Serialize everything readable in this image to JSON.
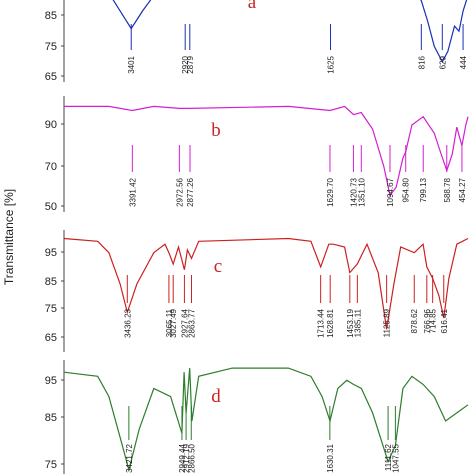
{
  "chart_data": {
    "type": "line",
    "ylabel": "Transmittance [%]",
    "x_direction": "wavenumber decreasing left to right",
    "panels": [
      {
        "label": "a",
        "label_color": "#cc2222",
        "color": "#1a2fb5",
        "yticks": [
          85,
          75,
          65
        ],
        "ylim": [
          58,
          95
        ],
        "series": [
          {
            "x": 4000,
            "y": 96
          },
          {
            "x": 3700,
            "y": 96
          },
          {
            "x": 3600,
            "y": 93
          },
          {
            "x": 3500,
            "y": 86
          },
          {
            "x": 3401,
            "y": 79
          },
          {
            "x": 3300,
            "y": 86
          },
          {
            "x": 3200,
            "y": 92
          },
          {
            "x": 3100,
            "y": 95
          },
          {
            "x": 3000,
            "y": 96
          },
          {
            "x": 2000,
            "y": 96
          },
          {
            "x": 1000,
            "y": 96
          },
          {
            "x": 900,
            "y": 95
          },
          {
            "x": 816,
            "y": 90
          },
          {
            "x": 760,
            "y": 82
          },
          {
            "x": 700,
            "y": 72
          },
          {
            "x": 629,
            "y": 66
          },
          {
            "x": 580,
            "y": 70
          },
          {
            "x": 520,
            "y": 80
          },
          {
            "x": 480,
            "y": 78
          },
          {
            "x": 444,
            "y": 86
          },
          {
            "x": 400,
            "y": 92
          }
        ],
        "peaks": [
          {
            "x": 3401,
            "label": "3401"
          },
          {
            "x": 2920,
            "label": "2920"
          },
          {
            "x": 2879,
            "label": "2879"
          },
          {
            "x": 1625,
            "label": "1625"
          },
          {
            "x": 816,
            "label": "816"
          },
          {
            "x": 629,
            "label": "629"
          },
          {
            "x": 444,
            "label": "444"
          }
        ]
      },
      {
        "label": "b",
        "label_color": "#cc2222",
        "color": "#d21fd2",
        "yticks": [
          90,
          70,
          50
        ],
        "ylim": [
          44,
          100
        ],
        "series": [
          {
            "x": 4000,
            "y": 95
          },
          {
            "x": 3600,
            "y": 95
          },
          {
            "x": 3391,
            "y": 93
          },
          {
            "x": 3200,
            "y": 95
          },
          {
            "x": 2972,
            "y": 94
          },
          {
            "x": 2877,
            "y": 94
          },
          {
            "x": 2000,
            "y": 95
          },
          {
            "x": 1630,
            "y": 93
          },
          {
            "x": 1500,
            "y": 95
          },
          {
            "x": 1420,
            "y": 91
          },
          {
            "x": 1351,
            "y": 92
          },
          {
            "x": 1250,
            "y": 84
          },
          {
            "x": 1150,
            "y": 66
          },
          {
            "x": 1095,
            "y": 52
          },
          {
            "x": 1040,
            "y": 56
          },
          {
            "x": 980,
            "y": 70
          },
          {
            "x": 955,
            "y": 73
          },
          {
            "x": 900,
            "y": 86
          },
          {
            "x": 799,
            "y": 90
          },
          {
            "x": 700,
            "y": 82
          },
          {
            "x": 640,
            "y": 72
          },
          {
            "x": 589,
            "y": 64
          },
          {
            "x": 540,
            "y": 72
          },
          {
            "x": 500,
            "y": 85
          },
          {
            "x": 454,
            "y": 76
          },
          {
            "x": 420,
            "y": 86
          },
          {
            "x": 400,
            "y": 90
          }
        ],
        "peaks": [
          {
            "x": 3391,
            "label": "3391.42"
          },
          {
            "x": 2972,
            "label": "2972.56"
          },
          {
            "x": 2877,
            "label": "2877.26"
          },
          {
            "x": 1630,
            "label": "1629.70"
          },
          {
            "x": 1421,
            "label": "1420.73"
          },
          {
            "x": 1351,
            "label": "1351.10"
          },
          {
            "x": 1095,
            "label": "1094.67"
          },
          {
            "x": 955,
            "label": "954.80"
          },
          {
            "x": 799,
            "label": "799.13"
          },
          {
            "x": 589,
            "label": "588.78"
          },
          {
            "x": 454,
            "label": "454.27"
          }
        ]
      },
      {
        "label": "c",
        "label_color": "#cc2222",
        "color": "#cc2020",
        "yticks": [
          95,
          85,
          75,
          65
        ],
        "ylim": [
          58,
          101
        ],
        "series": [
          {
            "x": 4000,
            "y": 98
          },
          {
            "x": 3700,
            "y": 97
          },
          {
            "x": 3600,
            "y": 93
          },
          {
            "x": 3500,
            "y": 82
          },
          {
            "x": 3436,
            "y": 72
          },
          {
            "x": 3350,
            "y": 82
          },
          {
            "x": 3200,
            "y": 93
          },
          {
            "x": 3100,
            "y": 96
          },
          {
            "x": 3065,
            "y": 93
          },
          {
            "x": 3027,
            "y": 89
          },
          {
            "x": 2980,
            "y": 95
          },
          {
            "x": 2927,
            "y": 87
          },
          {
            "x": 2900,
            "y": 94
          },
          {
            "x": 2864,
            "y": 91
          },
          {
            "x": 2800,
            "y": 97
          },
          {
            "x": 2000,
            "y": 98
          },
          {
            "x": 1800,
            "y": 97
          },
          {
            "x": 1713,
            "y": 88
          },
          {
            "x": 1640,
            "y": 96
          },
          {
            "x": 1600,
            "y": 96
          },
          {
            "x": 1500,
            "y": 95
          },
          {
            "x": 1453,
            "y": 86
          },
          {
            "x": 1386,
            "y": 89
          },
          {
            "x": 1300,
            "y": 96
          },
          {
            "x": 1200,
            "y": 86
          },
          {
            "x": 1125,
            "y": 66
          },
          {
            "x": 1060,
            "y": 82
          },
          {
            "x": 1000,
            "y": 95
          },
          {
            "x": 879,
            "y": 93
          },
          {
            "x": 800,
            "y": 96
          },
          {
            "x": 767,
            "y": 88
          },
          {
            "x": 715,
            "y": 84
          },
          {
            "x": 660,
            "y": 78
          },
          {
            "x": 616,
            "y": 70
          },
          {
            "x": 570,
            "y": 84
          },
          {
            "x": 500,
            "y": 96
          },
          {
            "x": 400,
            "y": 98
          }
        ],
        "peaks": [
          {
            "x": 3436,
            "label": "3436.23"
          },
          {
            "x": 3065,
            "label": "3065.11"
          },
          {
            "x": 3027,
            "label": "3027.49"
          },
          {
            "x": 2927,
            "label": "2927.64"
          },
          {
            "x": 2864,
            "label": "2863.77"
          },
          {
            "x": 1713,
            "label": "1713.44"
          },
          {
            "x": 1628,
            "label": "1628.81"
          },
          {
            "x": 1453,
            "label": "1453.19"
          },
          {
            "x": 1386,
            "label": "1385.11"
          },
          {
            "x": 1125,
            "label": "1125.89"
          },
          {
            "x": 879,
            "label": "878.62"
          },
          {
            "x": 767,
            "label": "766.96"
          },
          {
            "x": 715,
            "label": "714.85"
          },
          {
            "x": 616,
            "label": "616.41"
          }
        ]
      },
      {
        "label": "d",
        "label_color": "#cc2222",
        "color": "#2e7d2e",
        "yticks": [
          95,
          85,
          75
        ],
        "ylim": [
          72,
          101
        ],
        "series": [
          {
            "x": 4000,
            "y": 98
          },
          {
            "x": 3700,
            "y": 97
          },
          {
            "x": 3600,
            "y": 92
          },
          {
            "x": 3500,
            "y": 82
          },
          {
            "x": 3422,
            "y": 74
          },
          {
            "x": 3330,
            "y": 84
          },
          {
            "x": 3200,
            "y": 94
          },
          {
            "x": 3050,
            "y": 92
          },
          {
            "x": 2949,
            "y": 83
          },
          {
            "x": 2930,
            "y": 98
          },
          {
            "x": 2912,
            "y": 88
          },
          {
            "x": 2880,
            "y": 99
          },
          {
            "x": 2860,
            "y": 86
          },
          {
            "x": 2800,
            "y": 97
          },
          {
            "x": 2500,
            "y": 99
          },
          {
            "x": 2000,
            "y": 99
          },
          {
            "x": 1800,
            "y": 97
          },
          {
            "x": 1700,
            "y": 92
          },
          {
            "x": 1630,
            "y": 86
          },
          {
            "x": 1560,
            "y": 94
          },
          {
            "x": 1480,
            "y": 96
          },
          {
            "x": 1420,
            "y": 95
          },
          {
            "x": 1350,
            "y": 94
          },
          {
            "x": 1250,
            "y": 88
          },
          {
            "x": 1112,
            "y": 76
          },
          {
            "x": 1047,
            "y": 80
          },
          {
            "x": 980,
            "y": 94
          },
          {
            "x": 900,
            "y": 97
          },
          {
            "x": 800,
            "y": 95
          },
          {
            "x": 700,
            "y": 92
          },
          {
            "x": 600,
            "y": 86
          },
          {
            "x": 500,
            "y": 88
          },
          {
            "x": 400,
            "y": 90
          }
        ],
        "peaks": [
          {
            "x": 3422,
            "label": "3421.72"
          },
          {
            "x": 2949,
            "label": "2949.44"
          },
          {
            "x": 2912,
            "label": "2912.19"
          },
          {
            "x": 2866,
            "label": "2866.50"
          },
          {
            "x": 1631,
            "label": "1630.31"
          },
          {
            "x": 1112,
            "label": "1111.62"
          },
          {
            "x": 1047,
            "label": "1047.55"
          }
        ]
      }
    ]
  }
}
